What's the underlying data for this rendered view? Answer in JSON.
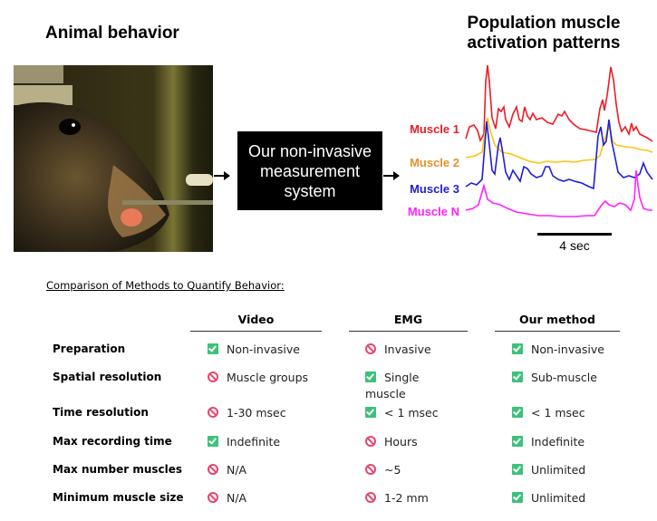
{
  "header": {
    "left_title": "Animal behavior",
    "right_title_line1": "Population muscle",
    "right_title_line2": "activation patterns"
  },
  "system_box": {
    "line1": "Our non-invasive",
    "line2": "measurement",
    "line3": "system"
  },
  "muscles": [
    {
      "label": "Muscle 1",
      "color": "#ee1c25"
    },
    {
      "label": "Muscle 2",
      "color": "#e8912a",
      "trace_color": "#ffc20e"
    },
    {
      "label": "Muscle 3",
      "color": "#1f1fd6"
    },
    {
      "label": "Muscle N",
      "color": "#ff22ff"
    }
  ],
  "scale_bar": {
    "label": "4 sec"
  },
  "comparison": {
    "title": "Comparison of Methods to Quantify Behavior:",
    "columns": [
      "Video",
      "EMG",
      "Our method"
    ],
    "rows": [
      {
        "label": "Preparation",
        "cells": [
          {
            "status": "good",
            "text": "Non-invasive"
          },
          {
            "status": "bad",
            "text": "Invasive"
          },
          {
            "status": "good",
            "text": "Non-invasive"
          }
        ]
      },
      {
        "label": "Spatial resolution",
        "cells": [
          {
            "status": "bad",
            "text": "Muscle groups"
          },
          {
            "status": "good",
            "text": "Single muscle"
          },
          {
            "status": "good",
            "text": "Sub-muscle"
          }
        ]
      },
      {
        "label": "Time resolution",
        "cells": [
          {
            "status": "bad",
            "text": "1-30 msec"
          },
          {
            "status": "good",
            "text": "< 1 msec"
          },
          {
            "status": "good",
            "text": "< 1 msec"
          }
        ]
      },
      {
        "label": "Max recording time",
        "cells": [
          {
            "status": "good",
            "text": "Indefinite"
          },
          {
            "status": "bad",
            "text": "Hours"
          },
          {
            "status": "good",
            "text": "Indefinite"
          }
        ]
      },
      {
        "label": "Max number muscles",
        "cells": [
          {
            "status": "bad",
            "text": "N/A"
          },
          {
            "status": "bad",
            "text": "~5"
          },
          {
            "status": "good",
            "text": "Unlimited"
          }
        ]
      },
      {
        "label": "Minimum muscle size",
        "cells": [
          {
            "status": "bad",
            "text": "N/A"
          },
          {
            "status": "bad",
            "text": "1-2 mm"
          },
          {
            "status": "good",
            "text": "Unlimited"
          }
        ]
      }
    ]
  }
}
